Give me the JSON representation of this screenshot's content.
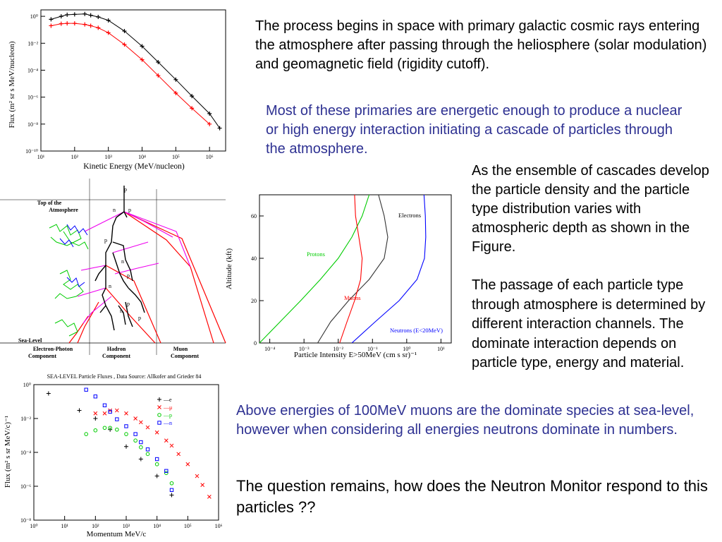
{
  "paragraphs": {
    "p1": "The process begins in space with primary galactic cosmic rays entering the atmosphere after passing through the heliosphere (solar modulation) and geomagnetic field (rigidity cutoff).",
    "p2": "Most of these primaries are energetic enough to produce a nuclear or high energy interaction initiating a cascade of particles through the atmosphere.",
    "p3": "As the ensemble of cascades develop the particle density and the particle type distribution varies with atmospheric depth as shown in the Figure.",
    "p4": "The passage of each particle type through atmosphere is determined by different interaction channels. The dominate interaction depends on particle type, energy and material.",
    "p5": "Above energies of 100MeV muons are the dominate species at sea-level, however when considering all energies neutrons dominate in numbers.",
    "p6": "The question remains, how does the Neutron Monitor respond to this particles ??"
  },
  "colors": {
    "blue_text": "#2e3192",
    "red": "#ff0000",
    "green": "#00cc00",
    "blue": "#0000ff",
    "magenta": "#ee00ee"
  },
  "fig1": {
    "xlabel": "Kinetic Energy (MeV/nucleon)",
    "ylabel": "Flux (m² sr s MeV/nucleon)",
    "xticks": [
      "10¹",
      "10²",
      "10³",
      "10⁴",
      "10⁵",
      "10⁶"
    ],
    "yticks": [
      "10⁰",
      "10⁻²",
      "10⁻⁴",
      "10⁻⁶",
      "10⁻⁸",
      "10⁻¹⁰"
    ]
  },
  "fig2": {
    "top_label_1": "Top of the",
    "top_label_2": "Atmosphere",
    "sea_label": "Sea-Level",
    "comp1_a": "Electron-Photon",
    "comp1_b": "Component",
    "comp2_a": "Hadron",
    "comp2_b": "Component",
    "comp3_a": "Muon",
    "comp3_b": "Component"
  },
  "fig3": {
    "ylabel": "Altitude (kft)",
    "xlabel": "Particle Intensity E>50MeV (cm s sr)⁻¹",
    "yticks": [
      "0",
      "20",
      "40",
      "60"
    ],
    "xticks": [
      "10⁻⁴",
      "10⁻³",
      "10⁻²",
      "10⁻¹",
      "10⁰",
      "10¹"
    ],
    "labels": {
      "electrons": "Electrons",
      "protons": "Protons",
      "muons": "Muons",
      "neutrons": "Neutrons (E<20MeV)"
    }
  },
  "fig4": {
    "title": "SEA-LEVEL Particle Fluxes , Data Source: Allkofer and Grieder 84",
    "xlabel": "Momentum MeV/c",
    "ylabel": "Flux (m² s sr MeV/c)⁻¹",
    "xticks": [
      "10⁰",
      "10¹",
      "10²",
      "10³",
      "10⁴",
      "10⁵",
      "10⁶"
    ],
    "yticks": [
      "10⁰",
      "10⁻²",
      "10⁻⁴",
      "10⁻⁶",
      "10⁻⁸"
    ],
    "legend": [
      "e",
      "μ",
      "p",
      "n"
    ]
  },
  "chart_data": [
    {
      "type": "scatter",
      "xlabel": "Kinetic Energy (MeV/nucleon)",
      "ylabel": "Flux (m² sr s MeV/nucleon)",
      "xscale": "log",
      "yscale": "log",
      "xlim": [
        10,
        3000000
      ],
      "ylim": [
        1e-10,
        3
      ],
      "series": [
        {
          "x": [
            20,
            40,
            60,
            100,
            200,
            300,
            500,
            1000,
            3000,
            10000,
            30000,
            100000,
            300000,
            1000000,
            2000000
          ],
          "y": [
            0.6,
            1.0,
            1.3,
            1.4,
            1.5,
            1.2,
            0.9,
            0.5,
            0.08,
            0.006,
            0.0004,
            2e-05,
            1.2e-06,
            6e-08,
            5e-09
          ]
        },
        {
          "x": [
            20,
            40,
            60,
            100,
            200,
            300,
            500,
            1000,
            3000,
            10000,
            30000,
            100000,
            300000,
            1000000
          ],
          "y": [
            0.2,
            0.28,
            0.3,
            0.3,
            0.25,
            0.2,
            0.14,
            0.06,
            0.008,
            0.0006,
            4e-05,
            2e-06,
            1.5e-07,
            1e-08
          ]
        }
      ]
    },
    {
      "type": "line",
      "xlabel": "Particle Intensity E>50MeV (cm s sr)⁻¹",
      "ylabel": "Altitude (kft)",
      "xscale": "log",
      "xlim": [
        5e-05,
        20
      ],
      "ylim": [
        0,
        70
      ],
      "series": [
        {
          "name": "Electrons",
          "x": [
            0.15,
            0.22,
            0.28,
            0.22,
            0.08,
            0.02,
            0.006,
            0.0025
          ],
          "y": [
            70,
            60,
            50,
            40,
            30,
            20,
            10,
            0
          ]
        },
        {
          "name": "Protons",
          "x": [
            0.08,
            0.05,
            0.025,
            0.01,
            0.003,
            0.0008,
            0.0002,
            5e-05
          ],
          "y": [
            70,
            60,
            50,
            40,
            30,
            20,
            10,
            0
          ]
        },
        {
          "name": "Muons",
          "x": [
            0.03,
            0.032,
            0.04,
            0.05,
            0.045,
            0.03,
            0.018,
            0.011
          ],
          "y": [
            70,
            60,
            50,
            40,
            30,
            20,
            10,
            0
          ]
        },
        {
          "name": "Neutrons (E<20MeV)",
          "x": [
            3.2,
            3.5,
            3.6,
            3.3,
            2.0,
            0.6,
            0.12,
            0.025
          ],
          "y": [
            70,
            60,
            50,
            40,
            30,
            20,
            10,
            0
          ]
        }
      ]
    },
    {
      "type": "scatter",
      "title": "SEA-LEVEL Particle Fluxes , Data Source: Allkofer and Grieder 84",
      "xlabel": "Momentum MeV/c",
      "ylabel": "Flux (m² s sr MeV/c)⁻¹",
      "xscale": "log",
      "yscale": "log",
      "xlim": [
        1,
        1000000
      ],
      "ylim": [
        1e-08,
        1
      ],
      "series": [
        {
          "name": "e",
          "x": [
            3,
            30,
            100,
            300,
            1000,
            3000,
            10000,
            30000
          ],
          "y": [
            0.3,
            0.03,
            0.01,
            0.0022,
            0.00022,
            4e-05,
            4e-06,
            3e-07
          ]
        },
        {
          "name": "μ",
          "x": [
            100,
            200,
            300,
            500,
            1000,
            2000,
            3000,
            5000,
            10000,
            20000,
            30000,
            50000,
            100000,
            200000,
            300000,
            500000
          ],
          "y": [
            0.02,
            0.02,
            0.03,
            0.03,
            0.02,
            0.01,
            0.006,
            0.003,
            0.0015,
            0.0005,
            0.00025,
            8e-05,
            2e-05,
            4e-06,
            1.2e-06,
            2.4e-07
          ]
        },
        {
          "name": "p",
          "x": [
            50,
            100,
            200,
            300,
            500,
            1000,
            2000,
            3000,
            5000,
            10000,
            20000,
            30000
          ],
          "y": [
            0.0012,
            0.002,
            0.0028,
            0.0028,
            0.0022,
            0.0012,
            0.0005,
            0.0002,
            8e-05,
            2e-05,
            6e-06,
            1.5e-06
          ]
        },
        {
          "name": "n",
          "x": [
            50,
            100,
            200,
            300,
            500,
            1000,
            2000,
            3000,
            5000,
            10000,
            20000,
            30000
          ],
          "y": [
            0.5,
            0.2,
            0.06,
            0.025,
            0.009,
            0.0035,
            0.0012,
            0.0004,
            0.00015,
            4e-05,
            8e-06,
            6e-07
          ]
        }
      ]
    }
  ]
}
